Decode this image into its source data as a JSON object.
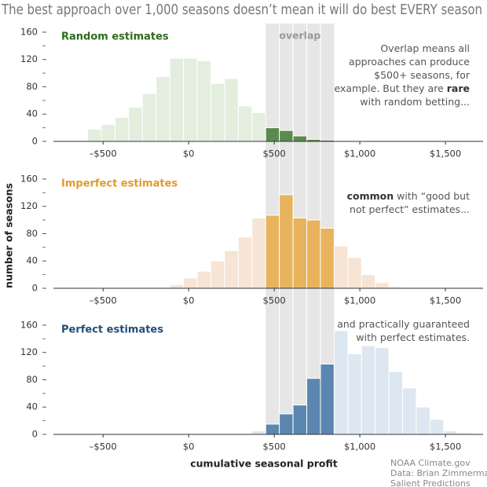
{
  "title": "The best approach over 1,000 seasons doesn’t mean it will do best EVERY season",
  "y_label": "number of seasons",
  "x_label": "cumulative seasonal profit",
  "credit": [
    "NOAA Climate.gov",
    "Data: Brian Zimmerman,",
    "Salient Predictions"
  ],
  "chart_data": [
    {
      "type": "histogram",
      "title": "Random estimates",
      "title_color": "#2e6b1f",
      "bins": [
        -750,
        -670,
        -590,
        -510,
        -430,
        -350,
        -270,
        -190,
        -110,
        -30,
        50,
        130,
        210,
        290,
        370,
        450,
        530,
        610,
        690,
        770,
        850,
        930,
        1010,
        1090,
        1170,
        1250,
        1330,
        1410,
        1490,
        1570,
        1650
      ],
      "values": [
        1,
        0,
        18,
        25,
        35,
        50,
        70,
        95,
        122,
        122,
        118,
        85,
        92,
        52,
        42,
        20,
        16,
        8,
        3,
        2,
        0,
        0,
        0,
        0,
        0,
        0,
        0,
        0,
        0,
        0
      ],
      "color": "#e3eedf",
      "highlight_color": "#5a8a50",
      "overlap": [
        450,
        850
      ],
      "overlap_label": "overlap",
      "xlim": [
        -790,
        1720
      ],
      "ylim": [
        0,
        168
      ],
      "xticks": [
        {
          "value": -500,
          "label": "–$500"
        },
        {
          "value": 0,
          "label": "$0"
        },
        {
          "value": 500,
          "label": "$500"
        },
        {
          "value": 1000,
          "label": "$1,000"
        },
        {
          "value": 1500,
          "label": "$1,500"
        }
      ],
      "yticks": [
        0,
        40,
        80,
        120,
        160
      ],
      "yminorticks": [
        20,
        60,
        100,
        140
      ],
      "annotation": [
        [
          {
            "text": "Overlap means all"
          }
        ],
        [
          {
            "text": "approaches can produce"
          }
        ],
        [
          {
            "text": "$500+ seasons, for"
          }
        ],
        [
          {
            "text": "example. But they are "
          },
          {
            "text": "rare",
            "bold": true
          }
        ],
        [
          {
            "text": "with random betting..."
          }
        ]
      ]
    },
    {
      "type": "histogram",
      "title": "Imperfect estimates",
      "title_color": "#e09a2a",
      "bins": [
        -750,
        -670,
        -590,
        -510,
        -430,
        -350,
        -270,
        -190,
        -110,
        -30,
        50,
        130,
        210,
        290,
        370,
        450,
        530,
        610,
        690,
        770,
        850,
        930,
        1010,
        1090,
        1170,
        1250,
        1330,
        1410,
        1490,
        1570,
        1650
      ],
      "values": [
        0,
        0,
        0,
        0,
        0,
        0,
        0,
        0,
        5,
        15,
        25,
        40,
        55,
        75,
        103,
        107,
        137,
        103,
        100,
        88,
        62,
        45,
        20,
        8,
        2,
        0,
        0,
        0,
        0,
        0
      ],
      "color": "#f6e4d4",
      "highlight_color": "#e8b35c",
      "overlap": [
        450,
        850
      ],
      "xlim": [
        -790,
        1720
      ],
      "ylim": [
        0,
        168
      ],
      "xticks": [
        {
          "value": -500,
          "label": "–$500"
        },
        {
          "value": 0,
          "label": "$0"
        },
        {
          "value": 500,
          "label": "$500"
        },
        {
          "value": 1000,
          "label": "$1,000"
        },
        {
          "value": 1500,
          "label": "$1,500"
        }
      ],
      "yticks": [
        0,
        40,
        80,
        120,
        160
      ],
      "yminorticks": [
        20,
        60,
        100,
        140
      ],
      "annotation": [
        [
          {
            "text": "common",
            "bold": true
          },
          {
            "text": " with “good but"
          }
        ],
        [
          {
            "text": "not perfect” estimates..."
          }
        ]
      ]
    },
    {
      "type": "histogram",
      "title": "Perfect estimates",
      "title_color": "#1f4e79",
      "bins": [
        -750,
        -670,
        -590,
        -510,
        -430,
        -350,
        -270,
        -190,
        -110,
        -30,
        50,
        130,
        210,
        290,
        370,
        450,
        530,
        610,
        690,
        770,
        850,
        930,
        1010,
        1090,
        1170,
        1250,
        1330,
        1410,
        1490,
        1570,
        1650
      ],
      "values": [
        0,
        0,
        0,
        0,
        0,
        0,
        0,
        0,
        0,
        0,
        0,
        0,
        0,
        0,
        5,
        15,
        30,
        43,
        82,
        103,
        152,
        118,
        130,
        127,
        92,
        68,
        40,
        22,
        5,
        2
      ],
      "color": "#dde7f1",
      "highlight_color": "#5b86b0",
      "overlap": [
        450,
        850
      ],
      "xlim": [
        -790,
        1720
      ],
      "ylim": [
        0,
        168
      ],
      "xticks": [
        {
          "value": -500,
          "label": "–$500"
        },
        {
          "value": 0,
          "label": "$0"
        },
        {
          "value": 500,
          "label": "$500"
        },
        {
          "value": 1000,
          "label": "$1,000"
        },
        {
          "value": 1500,
          "label": "$1,500"
        }
      ],
      "yticks": [
        0,
        40,
        80,
        120,
        160
      ],
      "yminorticks": [
        20,
        60,
        100,
        140
      ],
      "annotation": [
        [
          {
            "text": "and practically guaranteed"
          }
        ],
        [
          {
            "text": "with perfect estimates."
          }
        ]
      ]
    }
  ]
}
